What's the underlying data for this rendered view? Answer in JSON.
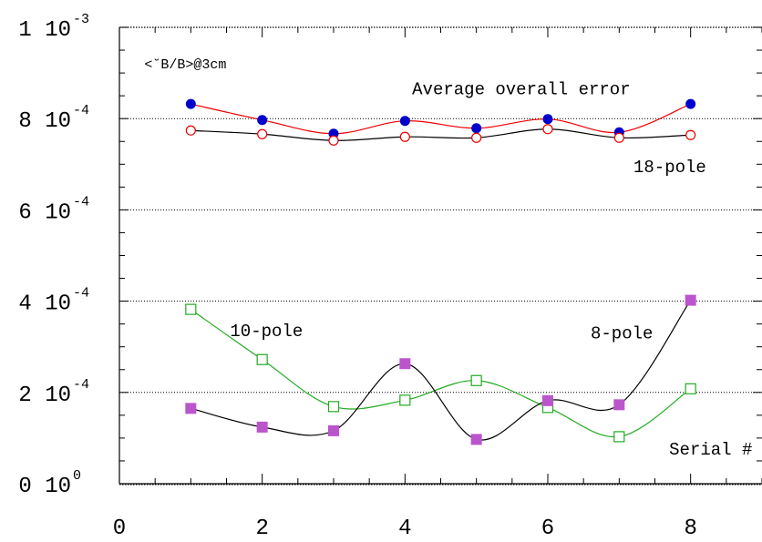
{
  "chart_data": {
    "type": "line",
    "title": "",
    "xlabel": "",
    "ylabel": "",
    "xlim": [
      0,
      9
    ],
    "ylim": [
      0,
      0.001
    ],
    "x_ticks": [
      {
        "value": 0,
        "label": "0"
      },
      {
        "value": 2,
        "label": "2"
      },
      {
        "value": 4,
        "label": "4"
      },
      {
        "value": 6,
        "label": "6"
      },
      {
        "value": 8,
        "label": "8"
      }
    ],
    "y_ticks": [
      {
        "value": 0,
        "mantissa": "0 10",
        "exp": "0"
      },
      {
        "value": 0.0002,
        "mantissa": "2 10",
        "exp": "-4"
      },
      {
        "value": 0.0004,
        "mantissa": "4 10",
        "exp": "-4"
      },
      {
        "value": 0.0006,
        "mantissa": "6 10",
        "exp": "-4"
      },
      {
        "value": 0.0008,
        "mantissa": "8 10",
        "exp": "-4"
      },
      {
        "value": 0.001,
        "mantissa": "1 10",
        "exp": "-3"
      }
    ],
    "gridlines_y": [
      0.0002,
      0.0004,
      0.0006,
      0.0008
    ],
    "annotations": [
      {
        "text": "<˘B/B>@3cm",
        "x": 0.35,
        "y": 0.00091
      },
      {
        "text": "Average overall error",
        "x": 4.1,
        "y": 0.000853
      },
      {
        "text": "18-pole",
        "x": 7.2,
        "y": 0.000683
      },
      {
        "text": "10-pole",
        "x": 1.55,
        "y": 0.000323
      },
      {
        "text": "8-pole",
        "x": 6.6,
        "y": 0.000318
      },
      {
        "text": "Serial #",
        "x": 7.7,
        "y": 6.39e-05
      }
    ],
    "series": [
      {
        "marker": "filled-circle",
        "marker_color": "#0000cc",
        "line_color": "#ee0000",
        "x": [
          1,
          2,
          3,
          4,
          5,
          6,
          7,
          8
        ],
        "y": [
          0.000832,
          0.000797,
          0.000767,
          0.000795,
          0.000779,
          0.000799,
          0.00077,
          0.000832
        ]
      },
      {
        "marker": "open-circle",
        "marker_color": "#ee0000",
        "line_color": "#000000",
        "x": [
          1,
          2,
          3,
          4,
          5,
          6,
          7,
          8
        ],
        "y": [
          0.000774,
          0.000766,
          0.000752,
          0.00076,
          0.000758,
          0.000777,
          0.000758,
          0.000764
        ]
      },
      {
        "marker": "open-square",
        "marker_color": "#22aa22",
        "line_color": "#22aa22",
        "x": [
          1,
          2,
          3,
          4,
          5,
          6,
          7,
          8
        ],
        "y": [
          0.000382,
          0.000272,
          0.000169,
          0.000183,
          0.000226,
          0.000167,
          0.000103,
          0.000208
        ]
      },
      {
        "marker": "filled-square",
        "marker_color": "#bb55cc",
        "line_color": "#000000",
        "x": [
          1,
          2,
          3,
          4,
          5,
          6,
          7,
          8
        ],
        "y": [
          0.000165,
          0.000124,
          0.000116,
          0.000263,
          9.7e-05,
          0.000182,
          0.000173,
          0.000402
        ]
      }
    ]
  }
}
